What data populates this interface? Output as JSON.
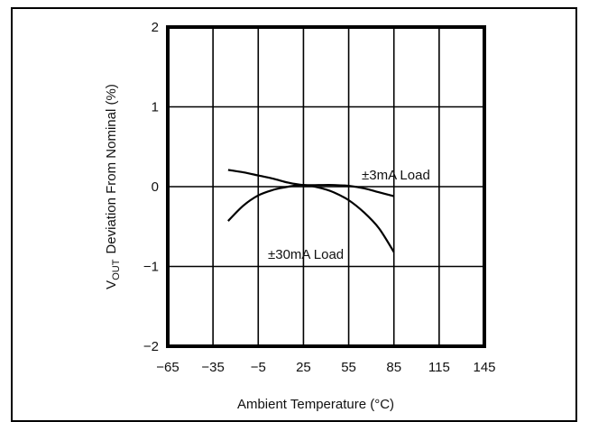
{
  "chart_data": {
    "type": "line",
    "xlabel": "Ambient Temperature (°C)",
    "ylabel_main": "V",
    "ylabel_sub": "OUT",
    "ylabel_rest": "Deviation From Nominal (%)",
    "xlim": [
      -65,
      145
    ],
    "ylim": [
      -2,
      2
    ],
    "x_ticks": [
      "−65",
      "−35",
      "−5",
      "25",
      "55",
      "85",
      "115",
      "145"
    ],
    "y_ticks": [
      "2",
      "1",
      "0",
      "−1",
      "−2"
    ],
    "grid": true,
    "series": [
      {
        "name": "±3mA Load",
        "x": [
          -25,
          -15,
          -5,
          5,
          15,
          25,
          35,
          45,
          55,
          65,
          75,
          85
        ],
        "y": [
          0.21,
          0.18,
          0.14,
          0.1,
          0.05,
          0.02,
          0.02,
          0.02,
          0.01,
          -0.02,
          -0.07,
          -0.12
        ]
      },
      {
        "name": "±30mA Load",
        "x": [
          -25,
          -15,
          -5,
          5,
          15,
          25,
          35,
          45,
          55,
          65,
          75,
          85
        ],
        "y": [
          -0.43,
          -0.24,
          -0.11,
          -0.04,
          0.0,
          0.02,
          -0.01,
          -0.07,
          -0.17,
          -0.32,
          -0.52,
          -0.82
        ]
      }
    ]
  }
}
